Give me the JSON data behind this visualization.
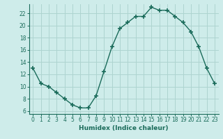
{
  "x": [
    0,
    1,
    2,
    3,
    4,
    5,
    6,
    7,
    8,
    9,
    10,
    11,
    12,
    13,
    14,
    15,
    16,
    17,
    18,
    19,
    20,
    21,
    22,
    23
  ],
  "y": [
    13,
    10.5,
    10,
    9,
    8,
    7,
    6.5,
    6.5,
    8.5,
    12.5,
    16.5,
    19.5,
    20.5,
    21.5,
    21.5,
    23,
    22.5,
    22.5,
    21.5,
    20.5,
    19,
    16.5,
    13,
    10.5
  ],
  "line_color": "#1a6b5a",
  "marker": "+",
  "marker_size": 4,
  "marker_lw": 1.2,
  "bg_color": "#ceecea",
  "grid_color": "#aed4d0",
  "xlabel": "Humidex (Indice chaleur)",
  "ylabel": "",
  "xlim": [
    -0.5,
    23.5
  ],
  "ylim": [
    5.5,
    23.5
  ],
  "yticks": [
    6,
    8,
    10,
    12,
    14,
    16,
    18,
    20,
    22
  ],
  "xticks": [
    0,
    1,
    2,
    3,
    4,
    5,
    6,
    7,
    8,
    9,
    10,
    11,
    12,
    13,
    14,
    15,
    16,
    17,
    18,
    19,
    20,
    21,
    22,
    23
  ],
  "label_fontsize": 6.5,
  "tick_fontsize": 5.5
}
